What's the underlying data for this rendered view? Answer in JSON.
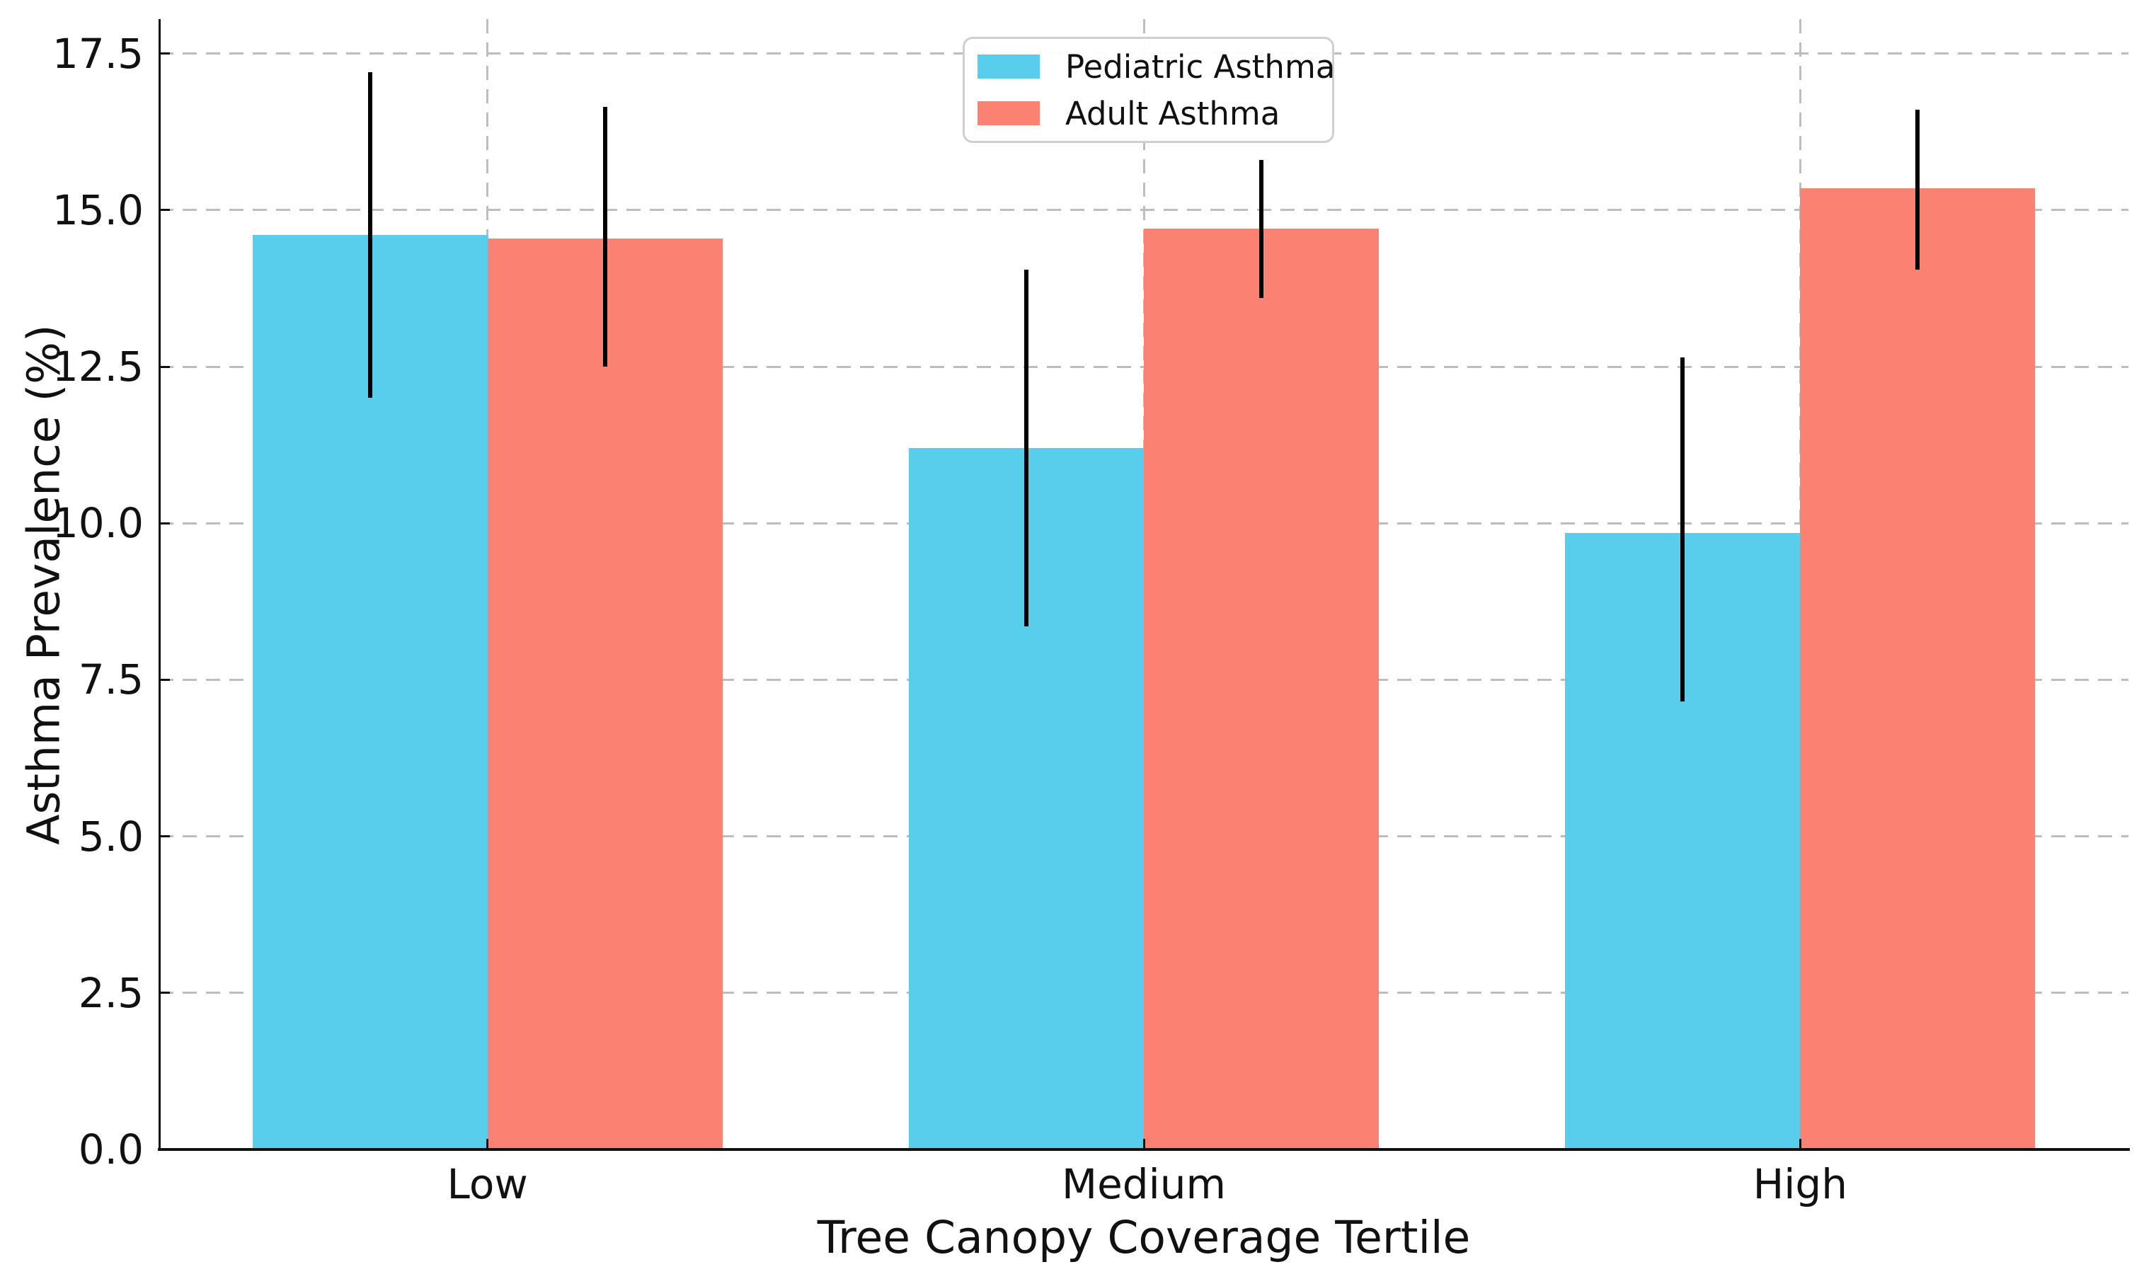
{
  "chart_data": {
    "type": "bar",
    "title": "",
    "xlabel": "Tree Canopy Coverage Tertile",
    "ylabel": "Asthma Prevalence (%)",
    "categories": [
      "Low",
      "Medium",
      "High"
    ],
    "series": [
      {
        "name": "Pediatric Asthma",
        "color": "#58CDEC",
        "values": [
          14.6,
          11.2,
          9.85
        ],
        "error_low": [
          12.0,
          8.35,
          7.15
        ],
        "error_high": [
          17.2,
          14.05,
          12.65
        ]
      },
      {
        "name": "Adult Asthma",
        "color": "#FB8273",
        "values": [
          14.55,
          14.7,
          15.35
        ],
        "error_low": [
          12.5,
          13.6,
          14.05
        ],
        "error_high": [
          16.65,
          15.8,
          16.6
        ]
      }
    ],
    "yticks": [
      "0.0",
      "2.5",
      "5.0",
      "7.5",
      "10.0",
      "12.5",
      "15.0",
      "17.5"
    ],
    "ylim": [
      0,
      18.05
    ],
    "grid": {
      "horizontal": true,
      "vertical": true,
      "style": "dashed",
      "color": "#bdbdbd"
    },
    "error_bar_color": "#000000",
    "spine_color": "#111111",
    "legend": {
      "position": "top-center",
      "border_color": "#cfcfcf"
    }
  }
}
